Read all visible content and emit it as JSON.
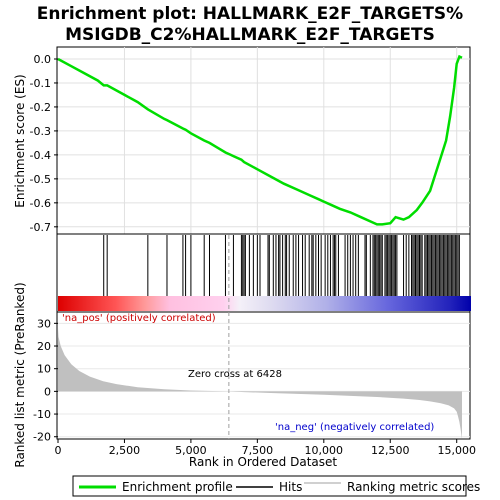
{
  "title_line1": "Enrichment plot: HALLMARK_E2F_TARGETS%",
  "title_line2": "MSIGDB_C2%HALLMARK_E2F_TARGETS",
  "colors": {
    "es_line": "#00dd00",
    "hits": "#000000",
    "metric_fill": "#c0c0c0",
    "zero_cross_line": "#a0a0a0",
    "pos_label": "#cc0000",
    "neg_label": "#0000cc"
  },
  "chart_data": [
    {
      "type": "line",
      "name": "enrichment-score-panel",
      "ylabel": "Enrichment score (ES)",
      "ylim": [
        -0.73,
        0.05
      ],
      "yticks": [
        "0.0",
        "-0.1",
        "-0.2",
        "-0.3",
        "-0.4",
        "-0.5",
        "-0.6",
        "-0.7"
      ],
      "ytick_values": [
        0.0,
        -0.1,
        -0.2,
        -0.3,
        -0.4,
        -0.5,
        -0.6,
        -0.7
      ],
      "xlim": [
        0,
        15500
      ],
      "grid": true,
      "series": [
        {
          "name": "Enrichment profile",
          "x": [
            0,
            500,
            1000,
            1500,
            1720,
            1850,
            2500,
            3000,
            3380,
            4000,
            4100,
            4700,
            4800,
            5000,
            5500,
            5700,
            6000,
            6300,
            6500,
            6600,
            6900,
            7000,
            7500,
            8000,
            8500,
            9000,
            9500,
            9800,
            10000,
            10300,
            10600,
            11000,
            11400,
            11800,
            12000,
            12200,
            12500,
            12700,
            13000,
            13200,
            13500,
            13700,
            14000,
            14200,
            14400,
            14600,
            14750,
            14900,
            15000,
            15100,
            15200
          ],
          "y": [
            0.0,
            -0.03,
            -0.06,
            -0.09,
            -0.11,
            -0.11,
            -0.15,
            -0.18,
            -0.21,
            -0.25,
            -0.255,
            -0.29,
            -0.295,
            -0.31,
            -0.34,
            -0.35,
            -0.37,
            -0.39,
            -0.4,
            -0.405,
            -0.42,
            -0.43,
            -0.46,
            -0.49,
            -0.52,
            -0.545,
            -0.57,
            -0.585,
            -0.595,
            -0.61,
            -0.625,
            -0.64,
            -0.66,
            -0.68,
            -0.69,
            -0.69,
            -0.685,
            -0.66,
            -0.67,
            -0.66,
            -0.63,
            -0.6,
            -0.55,
            -0.48,
            -0.41,
            -0.34,
            -0.24,
            -0.12,
            -0.02,
            0.01,
            0.005
          ]
        }
      ]
    },
    {
      "type": "scatter",
      "name": "hits-panel",
      "series": [
        {
          "name": "Hits",
          "x": [
            1720,
            1850,
            3380,
            4100,
            4700,
            4800,
            5000,
            5500,
            5700,
            6300,
            6600,
            6900,
            6950,
            7000,
            7050,
            7200,
            7350,
            7500,
            7600,
            7900,
            7950,
            8100,
            8200,
            8300,
            8350,
            8450,
            8550,
            8600,
            8700,
            8850,
            8950,
            9050,
            9200,
            9300,
            9450,
            9550,
            9600,
            9700,
            9800,
            9900,
            10050,
            10150,
            10250,
            10350,
            10400,
            10450,
            10550,
            10800,
            10900,
            11000,
            11100,
            11200,
            11300,
            11550,
            11600,
            11750,
            11850,
            11900,
            11950,
            12000,
            12050,
            12100,
            12150,
            12200,
            12300,
            12350,
            12400,
            12450,
            12500,
            12550,
            12600,
            12650,
            12700,
            12750,
            13000,
            13100,
            13200,
            13300,
            13350,
            13400,
            13450,
            13500,
            13550,
            13600,
            13650,
            13700,
            13800,
            13850,
            13900,
            13950,
            14000,
            14050,
            14100,
            14150,
            14200,
            14250,
            14300,
            14350,
            14400,
            14450,
            14500,
            14550,
            14600,
            14650,
            14700,
            14750,
            14800,
            14850,
            14900,
            14950,
            15000,
            15050,
            15100
          ]
        }
      ]
    },
    {
      "type": "area",
      "name": "ranked-metric-panel",
      "ylabel": "Ranked list metric (PreRanked)",
      "xlabel": "Rank in Ordered Dataset",
      "ylim": [
        -21,
        35
      ],
      "yticks": [
        "30",
        "20",
        "10",
        "0",
        "-10",
        "-20"
      ],
      "ytick_values": [
        30,
        20,
        10,
        0,
        -10,
        -20
      ],
      "xticks": [
        "0",
        "2,500",
        "5,000",
        "7,500",
        "10,000",
        "12,500",
        "15,000"
      ],
      "xtick_values": [
        0,
        2500,
        5000,
        7500,
        10000,
        12500,
        15000
      ],
      "xlim": [
        0,
        15500
      ],
      "series": [
        {
          "name": "Ranking metric scores",
          "x": [
            0,
            20,
            100,
            250,
            500,
            800,
            1200,
            1700,
            2200,
            3000,
            4000,
            5000,
            6000,
            6428,
            7000,
            8000,
            9000,
            10000,
            11000,
            12000,
            13000,
            13600,
            14000,
            14400,
            14700,
            14900,
            15000,
            15050,
            15100,
            15150,
            15200
          ],
          "y": [
            28,
            24,
            20,
            16,
            12,
            9,
            6.5,
            4.5,
            3.2,
            1.8,
            0.9,
            0.4,
            0.1,
            0.0,
            -0.3,
            -0.7,
            -1.1,
            -1.5,
            -2.0,
            -2.5,
            -3.2,
            -3.8,
            -4.4,
            -5.2,
            -6.2,
            -7.5,
            -9.0,
            -11.0,
            -13.5,
            -17.0,
            -21.0
          ]
        }
      ],
      "annotations": {
        "zero_cross": "Zero cross at 6428",
        "zero_cross_x": 6428,
        "pos_label": "'na_pos' (positively correlated)",
        "neg_label": "'na_neg' (negatively correlated)"
      }
    }
  ],
  "legend": {
    "placement": "bottom",
    "items": [
      {
        "label": "Enrichment profile",
        "color": "#00dd00"
      },
      {
        "label": "Hits",
        "color": "#000000"
      },
      {
        "label": "Ranking metric scores",
        "color": "#c0c0c0"
      }
    ]
  }
}
